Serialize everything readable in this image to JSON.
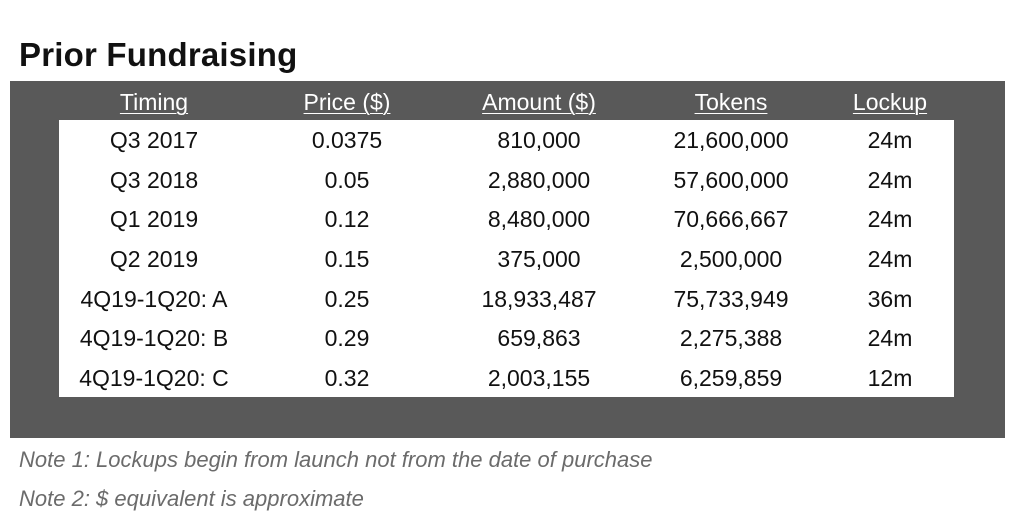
{
  "title": "Prior Fundraising",
  "table": {
    "headers": [
      "Timing",
      "Price ($)",
      "Amount ($)",
      "Tokens",
      "Lockup"
    ],
    "rows": [
      [
        "Q3 2017",
        "0.0375",
        "810,000",
        "21,600,000",
        "24m"
      ],
      [
        "Q3 2018",
        "0.05",
        "2,880,000",
        "57,600,000",
        "24m"
      ],
      [
        "Q1 2019",
        "0.12",
        "8,480,000",
        "70,666,667",
        "24m"
      ],
      [
        "Q2 2019",
        "0.15",
        "375,000",
        "2,500,000",
        "24m"
      ],
      [
        "4Q19-1Q20: A",
        "0.25",
        "18,933,487",
        "75,733,949",
        "36m"
      ],
      [
        "4Q19-1Q20: B",
        "0.29",
        "659,863",
        "2,275,388",
        "24m"
      ],
      [
        "4Q19-1Q20: C",
        "0.32",
        "2,003,155",
        "6,259,859",
        "12m"
      ]
    ]
  },
  "notes": [
    "Note 1: Lockups begin from launch not from the date of purchase",
    "Note 2: $ equivalent is approximate"
  ],
  "colors": {
    "panel": "#595959",
    "header_text": "#ffffff",
    "note_text": "#6b6b6b"
  }
}
